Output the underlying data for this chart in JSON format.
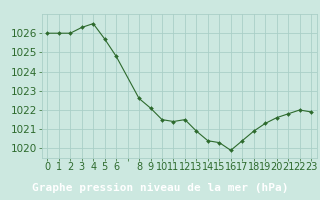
{
  "x": [
    0,
    1,
    2,
    3,
    4,
    5,
    6,
    8,
    9,
    10,
    11,
    12,
    13,
    14,
    15,
    16,
    17,
    18,
    19,
    20,
    21,
    22,
    23
  ],
  "y": [
    1026.0,
    1026.0,
    1026.0,
    1026.3,
    1026.5,
    1025.7,
    1024.8,
    1022.6,
    1022.1,
    1021.5,
    1021.4,
    1021.5,
    1020.9,
    1020.4,
    1020.3,
    1019.9,
    1020.4,
    1020.9,
    1021.3,
    1021.6,
    1021.8,
    1022.0,
    1021.9
  ],
  "ylim": [
    1019.5,
    1027.0
  ],
  "yticks": [
    1020,
    1021,
    1022,
    1023,
    1024,
    1025,
    1026
  ],
  "xtick_labels": [
    "0",
    "1",
    "2",
    "3",
    "4",
    "5",
    "6",
    "",
    "8",
    "9",
    "10",
    "11",
    "12",
    "13",
    "14",
    "15",
    "16",
    "17",
    "18",
    "19",
    "20",
    "21",
    "22",
    "23"
  ],
  "xlabel": "Graphe pression niveau de la mer (hPa)",
  "line_color": "#2d6a2d",
  "marker_color": "#2d6a2d",
  "bg_color": "#cce8e0",
  "grid_color": "#aacfc7",
  "label_bar_color": "#3a7a3a",
  "label_text_color": "#ffffff",
  "tick_color": "#2d6a2d",
  "xlabel_fontsize": 8.0,
  "tick_fontsize": 7.0,
  "ytick_fontsize": 7.5
}
